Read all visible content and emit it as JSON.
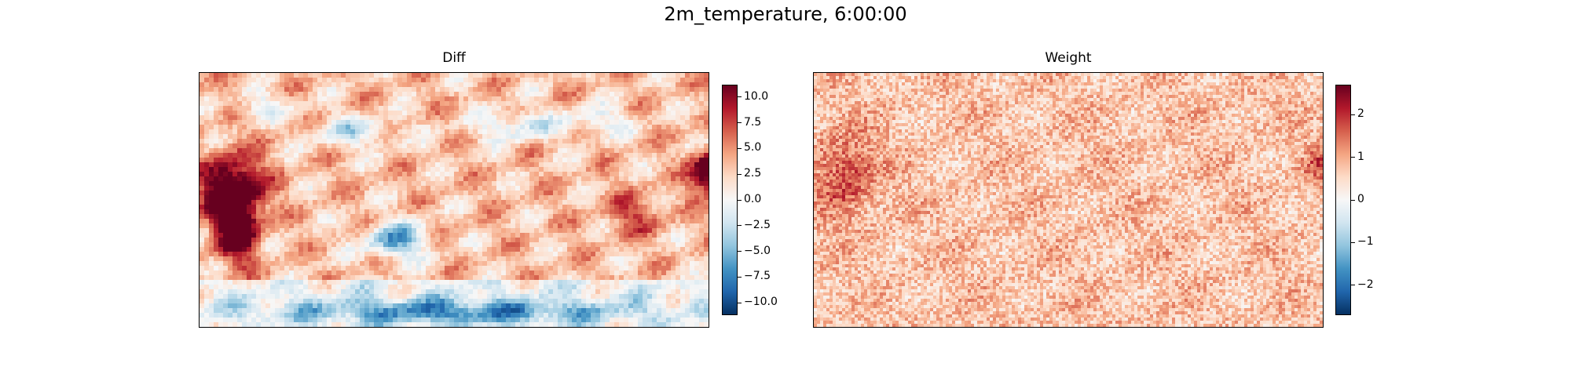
{
  "figure": {
    "title": "2m_temperature, 6:00:00"
  },
  "colormap": {
    "name": "RdBu_r",
    "stops": [
      "#053061",
      "#2166ac",
      "#4393c3",
      "#92c5de",
      "#d1e5f0",
      "#f7f7f7",
      "#fddbc7",
      "#f4a582",
      "#d6604d",
      "#b2182b",
      "#67001f"
    ]
  },
  "chart_data": [
    {
      "type": "heatmap",
      "title": "Diff",
      "xlabel": "",
      "ylabel": "",
      "colorbar": {
        "range": [
          -11.2,
          11.2
        ],
        "ticks": [
          10.0,
          7.5,
          5.0,
          2.5,
          0.0,
          -2.5,
          -5.0,
          -7.5,
          -10.0
        ],
        "tick_labels": [
          "10.0",
          "7.5",
          "5.0",
          "2.5",
          "0.0",
          "−2.5",
          "−5.0",
          "−7.5",
          "−10.0"
        ]
      },
      "description": "global map field; strong positive anomaly over Africa, negative over Australia, Antarctic coast and northern mid-latitudes"
    },
    {
      "type": "heatmap",
      "title": "Weight",
      "xlabel": "",
      "ylabel": "",
      "colorbar": {
        "range": [
          -2.7,
          2.7
        ],
        "ticks": [
          2,
          1,
          0,
          -1,
          -2
        ],
        "tick_labels": [
          "2",
          "1",
          "0",
          "−1",
          "−2"
        ]
      },
      "description": "noisy field around 0.8 with darker patches over Africa"
    }
  ]
}
